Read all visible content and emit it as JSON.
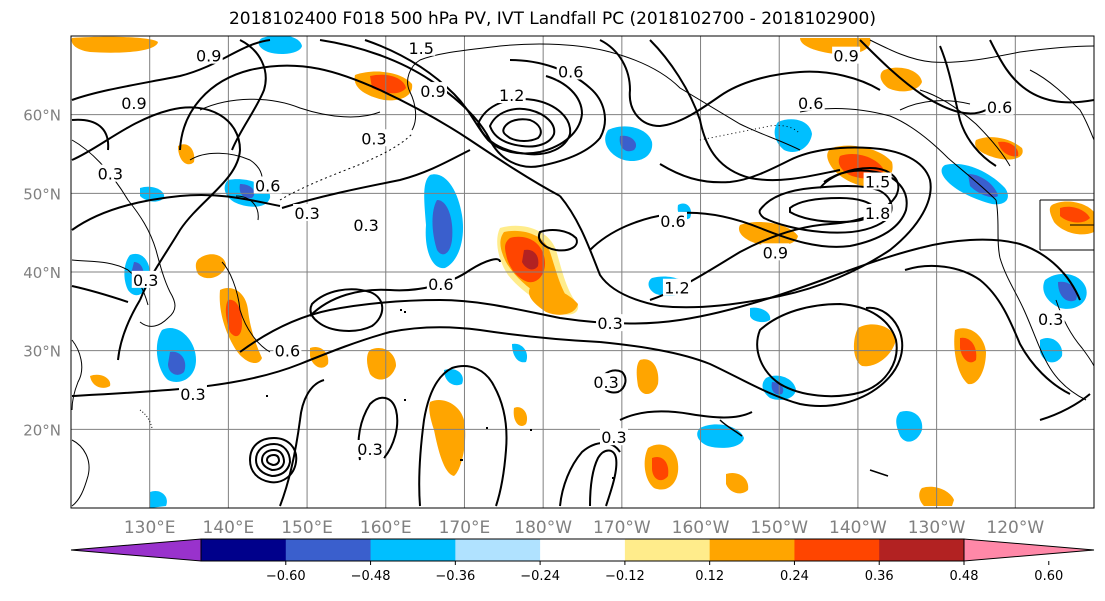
{
  "title": "2018102400 F018 500 hPa PV, IVT Landfall PC (2018102700 - 2018102900)",
  "map": {
    "lat_labels": [
      "60°N",
      "50°N",
      "40°N",
      "30°N",
      "20°N"
    ],
    "lat_values": [
      60,
      50,
      40,
      30,
      20
    ],
    "lon_labels": [
      "130°E",
      "140°E",
      "150°E",
      "160°E",
      "170°E",
      "180°W",
      "170°W",
      "160°W",
      "150°W",
      "140°W",
      "130°W",
      "120°W"
    ],
    "lon_values": [
      130,
      140,
      150,
      160,
      170,
      180,
      190,
      200,
      210,
      220,
      230,
      240
    ],
    "lat_range": [
      10,
      70
    ],
    "lon_range": [
      120,
      250
    ],
    "grid": true
  },
  "contour_labels": [
    {
      "text": "0.9",
      "lon": 137.5,
      "lat": 67.5
    },
    {
      "text": "1.5",
      "lon": 164.5,
      "lat": 68.5
    },
    {
      "text": "0.6",
      "lon": 183.5,
      "lat": 65.5
    },
    {
      "text": "0.9",
      "lon": 166,
      "lat": 63
    },
    {
      "text": "1.2",
      "lon": 176,
      "lat": 62.5
    },
    {
      "text": "0.9",
      "lon": 128,
      "lat": 61.5
    },
    {
      "text": "0.3",
      "lon": 158.5,
      "lat": 57
    },
    {
      "text": "0.9",
      "lon": 218.5,
      "lat": 67.5
    },
    {
      "text": "0.6",
      "lon": 214,
      "lat": 61.5
    },
    {
      "text": "0.6",
      "lon": 238,
      "lat": 61
    },
    {
      "text": "0.3",
      "lon": 125,
      "lat": 52.5
    },
    {
      "text": "0.6",
      "lon": 145,
      "lat": 51
    },
    {
      "text": "0.3",
      "lon": 150,
      "lat": 47.5
    },
    {
      "text": "0.3",
      "lon": 157.5,
      "lat": 46
    },
    {
      "text": "0.6",
      "lon": 196.5,
      "lat": 46.5
    },
    {
      "text": "1.5",
      "lon": 222.5,
      "lat": 51.5
    },
    {
      "text": "1.8",
      "lon": 222.5,
      "lat": 47.5
    },
    {
      "text": "0.9",
      "lon": 209.5,
      "lat": 42.5
    },
    {
      "text": "1.2",
      "lon": 197,
      "lat": 38
    },
    {
      "text": "0.6",
      "lon": 167,
      "lat": 38.5
    },
    {
      "text": "0.3",
      "lon": 129.5,
      "lat": 39
    },
    {
      "text": "0.3",
      "lon": 188.5,
      "lat": 33.5
    },
    {
      "text": "0.6",
      "lon": 147.5,
      "lat": 30
    },
    {
      "text": "0.3",
      "lon": 135.5,
      "lat": 24.5
    },
    {
      "text": "0.3",
      "lon": 188,
      "lat": 26
    },
    {
      "text": "0.3",
      "lon": 158,
      "lat": 17.5
    },
    {
      "text": "0.3",
      "lon": 189,
      "lat": 19
    },
    {
      "text": "0.3",
      "lon": 244.5,
      "lat": 34
    }
  ],
  "colorbar": {
    "ticks": [
      "−0.60",
      "−0.48",
      "−0.36",
      "−0.24",
      "−0.12",
      "0.12",
      "0.24",
      "0.36",
      "0.48",
      "0.60"
    ],
    "colors": [
      "#9932CC",
      "#00008B",
      "#3A5FCD",
      "#00BFFF",
      "#B0E2FF",
      "#FFFFFF",
      "#FFEC8B",
      "#FFA500",
      "#FF4500",
      "#B22222",
      "#FF88A8"
    ]
  },
  "colors": {
    "contour": "#000000",
    "coast": "#000000",
    "grid": "#808080",
    "shading_levels": {
      "neg_012": "#B0E2FF",
      "neg_024": "#00BFFF",
      "neg_036": "#3A5FCD",
      "pos_012": "#FFEC8B",
      "pos_024": "#FFA500",
      "pos_036": "#FF4500",
      "pos_048": "#B22222"
    }
  }
}
